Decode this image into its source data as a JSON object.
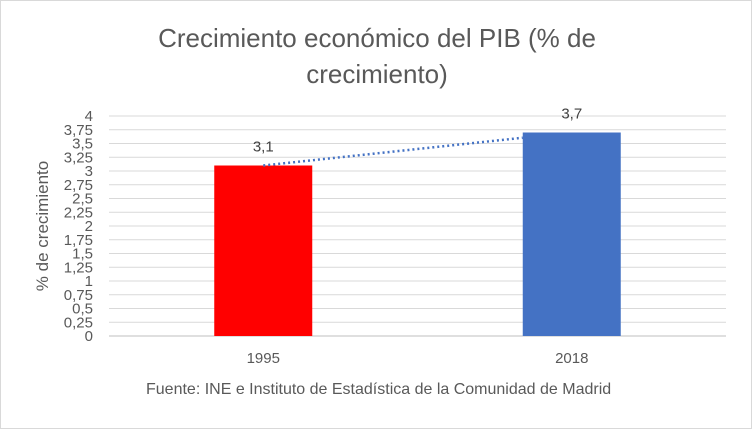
{
  "chart_data": {
    "type": "bar",
    "title_lines": [
      "Crecimiento económico del PIB (% de",
      "crecimiento)"
    ],
    "ylabel": "% de crecimiento",
    "xlabel": "",
    "categories": [
      "1995",
      "2018"
    ],
    "values": [
      3.1,
      3.7
    ],
    "data_labels": [
      "3,1",
      "3,7"
    ],
    "bar_colors": [
      "#ff0000",
      "#4472c4"
    ],
    "ylim": [
      0,
      4
    ],
    "yticks": [
      0,
      0.25,
      0.5,
      0.75,
      1,
      1.25,
      1.5,
      1.75,
      2,
      2.25,
      2.5,
      2.75,
      3,
      3.25,
      3.5,
      3.75,
      4
    ],
    "ytick_labels": [
      "0",
      "0,25",
      "0,5",
      "0,75",
      "1",
      "1,25",
      "1,5",
      "1,75",
      "2",
      "2,25",
      "2,5",
      "2,75",
      "3",
      "3,25",
      "3,5",
      "3,75",
      "4"
    ],
    "grid": true,
    "trendline": {
      "type": "linear",
      "style": "dotted",
      "color": "#4472c4"
    },
    "source_note": "Fuente: INE e Instituto de Estadística de la Comunidad de Madrid"
  }
}
